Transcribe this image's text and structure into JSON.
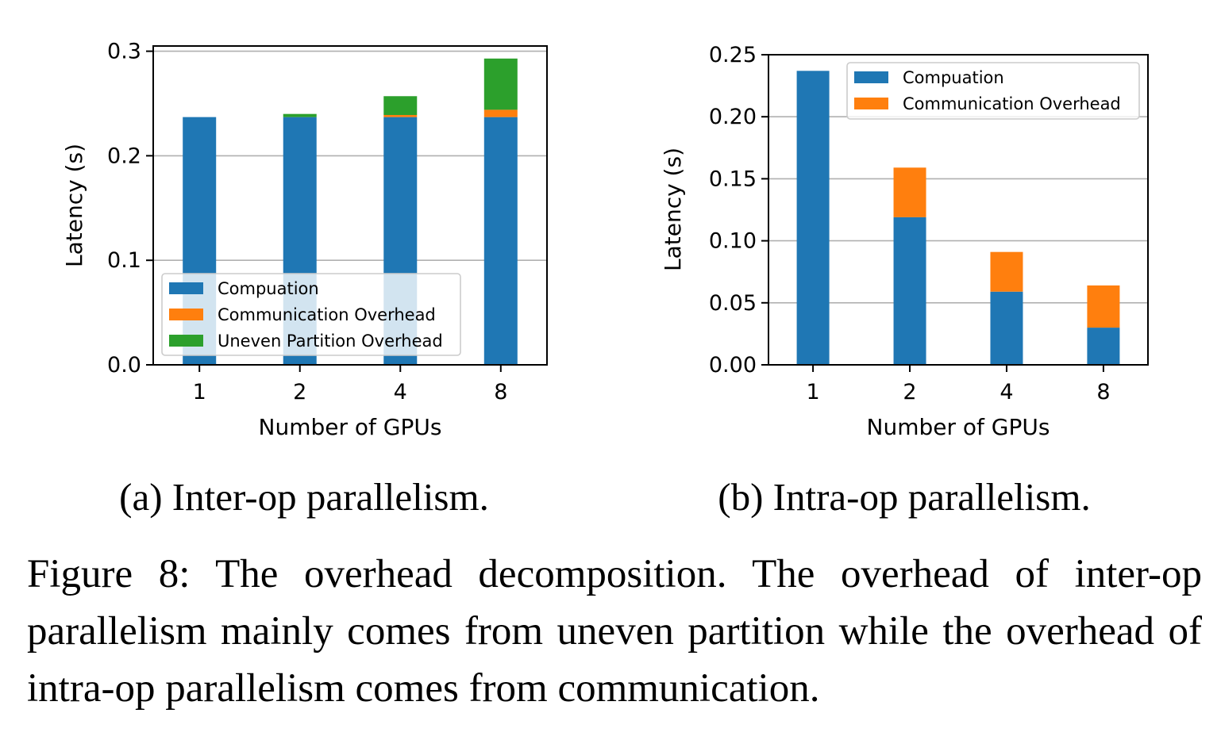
{
  "chart_data": [
    {
      "type": "bar",
      "stacked": true,
      "caption": "(a) Inter-op parallelism.",
      "xlabel": "Number of GPUs",
      "ylabel": "Latency (s)",
      "categories": [
        "1",
        "2",
        "4",
        "8"
      ],
      "ylim": [
        0,
        0.305
      ],
      "yticks": [
        "0.0",
        "0.1",
        "0.2",
        "0.3"
      ],
      "ytick_values": [
        0,
        0.1,
        0.2,
        0.3
      ],
      "grid": "horizontal",
      "legend_position": "lower-left",
      "series": [
        {
          "name": "Compuation",
          "color": "#1f77b4",
          "values": [
            0.237,
            0.237,
            0.237,
            0.237
          ]
        },
        {
          "name": "Communication Overhead",
          "color": "#ff7f0e",
          "values": [
            0.0,
            0.0,
            0.002,
            0.007
          ]
        },
        {
          "name": "Uneven Partition Overhead",
          "color": "#2ca02c",
          "values": [
            0.0,
            0.003,
            0.018,
            0.049
          ]
        }
      ]
    },
    {
      "type": "bar",
      "stacked": true,
      "caption": "(b) Intra-op parallelism.",
      "xlabel": "Number of GPUs",
      "ylabel": "Latency (s)",
      "categories": [
        "1",
        "2",
        "4",
        "8"
      ],
      "ylim": [
        0,
        0.25
      ],
      "yticks": [
        "0.00",
        "0.05",
        "0.10",
        "0.15",
        "0.20",
        "0.25"
      ],
      "ytick_values": [
        0,
        0.05,
        0.1,
        0.15,
        0.2,
        0.25
      ],
      "grid": "horizontal",
      "legend_position": "top-right",
      "series": [
        {
          "name": "Compuation",
          "color": "#1f77b4",
          "values": [
            0.237,
            0.119,
            0.059,
            0.03
          ]
        },
        {
          "name": "Communication Overhead",
          "color": "#ff7f0e",
          "values": [
            0.0,
            0.04,
            0.032,
            0.034
          ]
        }
      ]
    }
  ],
  "figure_caption": "Figure 8: The overhead decomposition. The overhead of inter-op parallelism mainly comes from uneven partition while the overhead of intra-op parallelism comes from communication."
}
